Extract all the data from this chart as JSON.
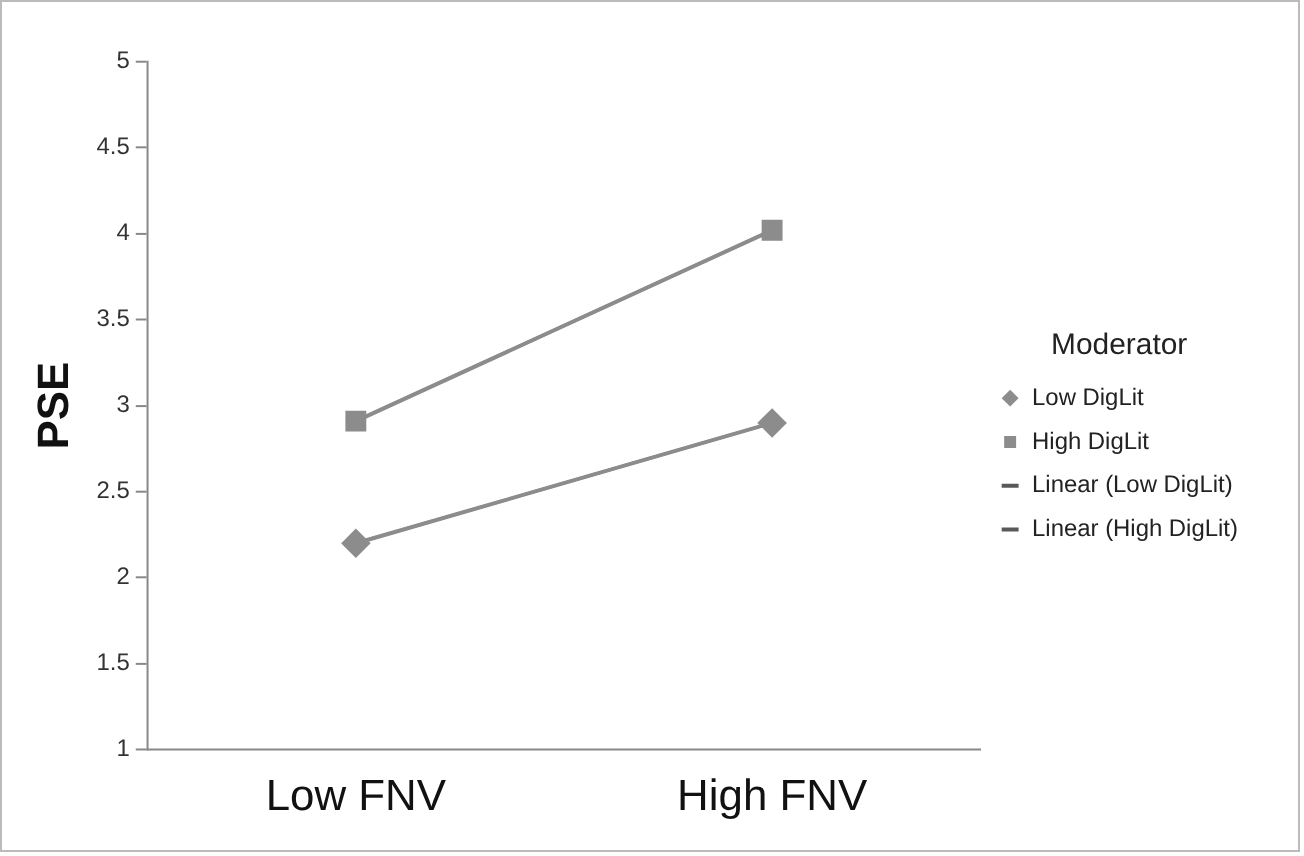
{
  "chart_data": {
    "type": "line",
    "ylabel": "PSE",
    "legend_title": "Moderator",
    "legend": "right",
    "grid": false,
    "categories": [
      "Low FNV",
      "High FNV"
    ],
    "ylim": [
      1,
      5
    ],
    "yticks": [
      1,
      1.5,
      2,
      2.5,
      3,
      3.5,
      4,
      4.5,
      5
    ],
    "series": [
      {
        "name": "Low DigLit",
        "color": "#8c8c8c",
        "values": [
          2.2,
          2.9
        ],
        "marker": "diamond"
      },
      {
        "name": "High DigLit",
        "color": "#8c8c8c",
        "values": [
          2.91,
          4.02
        ],
        "marker": "square"
      },
      {
        "name": "Linear (Low DigLit)",
        "color": "#595959",
        "values": [
          2.2,
          2.9
        ],
        "marker": "none"
      },
      {
        "name": "Linear (High DigLit)",
        "color": "#595959",
        "values": [
          2.91,
          4.02
        ],
        "marker": "none"
      }
    ]
  }
}
